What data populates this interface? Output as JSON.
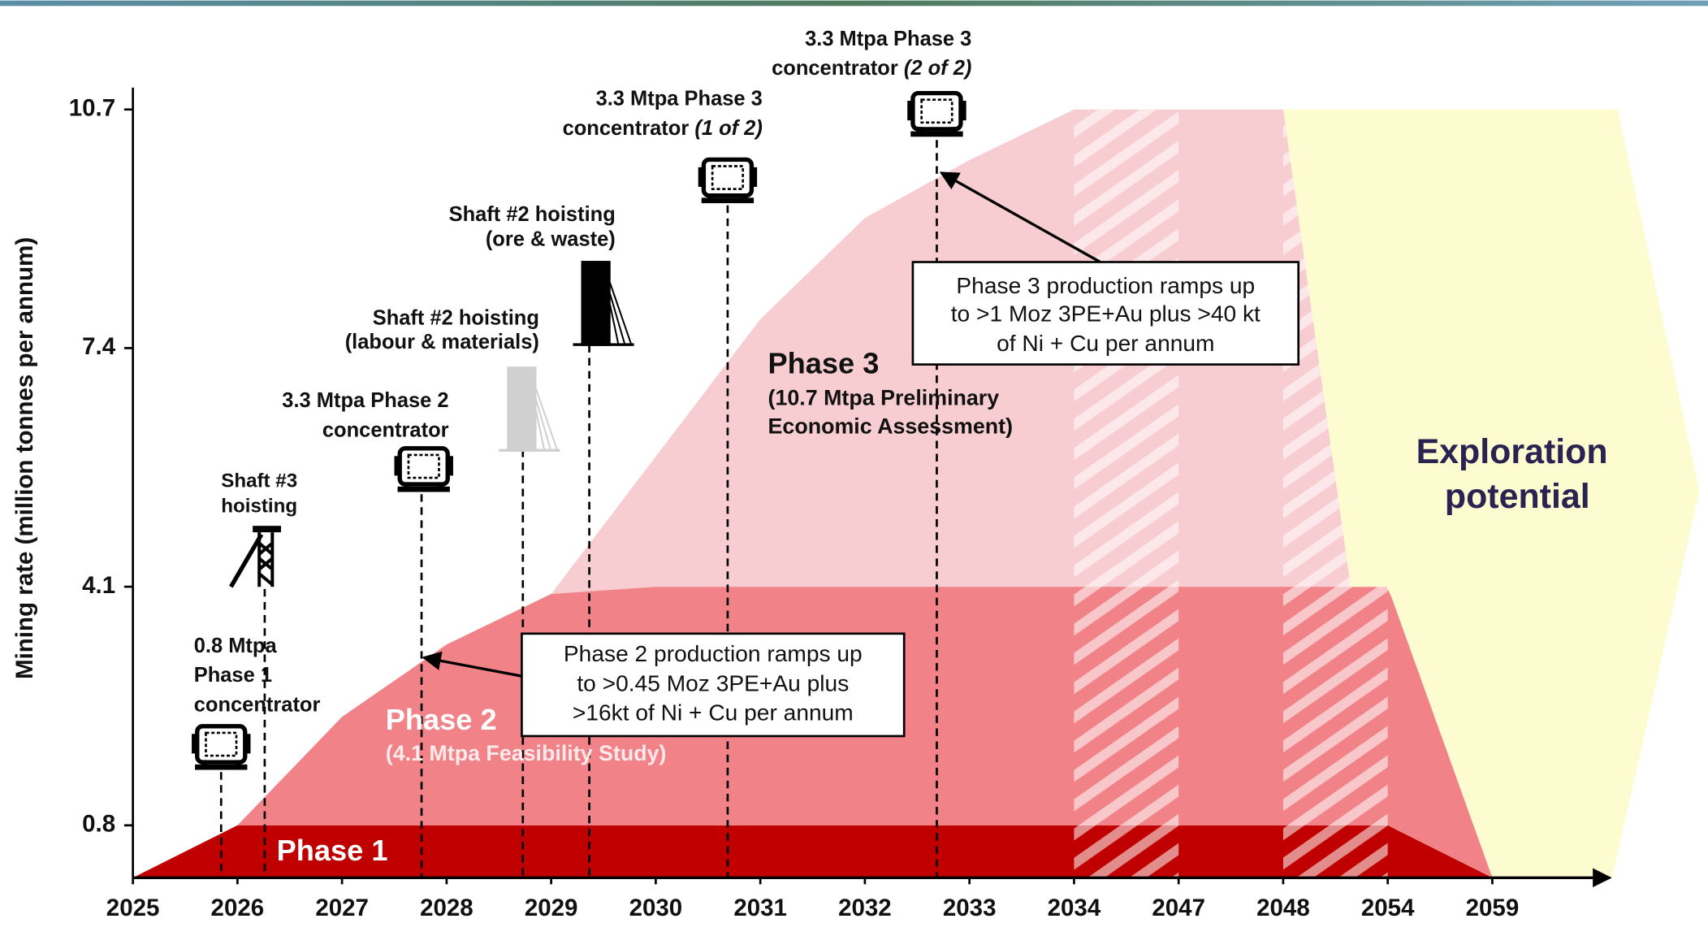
{
  "chart_data": {
    "type": "area",
    "ylabel": "Mining rate (million tonnes per annum)",
    "categories": [
      "2025",
      "2026",
      "2027",
      "2028",
      "2029",
      "2030",
      "2031",
      "2032",
      "2033",
      "2034",
      "2047",
      "2048",
      "2054",
      "2059"
    ],
    "ylim": [
      0,
      10.7
    ],
    "yticks": [
      0.8,
      4.1,
      7.4,
      10.7
    ],
    "series": [
      {
        "name": "Phase 1",
        "color": "#c00000",
        "values": [
          0,
          0.8,
          0.8,
          0.8,
          0.8,
          0.8,
          0.8,
          0.8,
          0.8,
          0.8,
          0.8,
          0.8,
          0.8,
          0
        ]
      },
      {
        "name": "Phase 2",
        "subtitle": [
          "(4.1 Mtpa Feasibility Study)"
        ],
        "color": "#f08288",
        "values": [
          0,
          0,
          1.5,
          2.5,
          3.2,
          3.3,
          3.3,
          3.3,
          3.3,
          3.3,
          3.3,
          3.3,
          3.3,
          0
        ]
      },
      {
        "name": "Phase 3",
        "subtitle": [
          "(10.7 Mtpa Preliminary",
          "Economic Assessment)"
        ],
        "color": "#f8cdd1",
        "values": [
          0,
          0,
          0,
          0,
          0,
          1.8,
          3.7,
          5.1,
          5.9,
          6.6,
          6.6,
          6.6,
          0,
          0
        ]
      }
    ],
    "milestones": [
      {
        "lines": [
          "0.8 Mtpa",
          "Phase 1",
          "concentrator"
        ]
      },
      {
        "lines": [
          "Shaft #3",
          "hoisting"
        ]
      },
      {
        "lines": [
          "3.3 Mtpa Phase 2",
          "concentrator"
        ]
      },
      {
        "lines": [
          "Shaft #2 hoisting",
          "(labour & materials)"
        ]
      },
      {
        "lines": [
          "Shaft #2 hoisting",
          "(ore & waste)"
        ]
      },
      {
        "lines": [
          "3.3 Mtpa Phase 3",
          "concentrator"
        ],
        "note": "(1 of 2)"
      },
      {
        "lines": [
          "3.3 Mtpa Phase 3",
          "concentrator"
        ],
        "note": "(2 of 2)"
      }
    ],
    "callouts": [
      {
        "lines": [
          "Phase 3 production ramps up",
          "to >1 Moz 3PE+Au plus >40 kt",
          "of Ni + Cu per annum"
        ]
      },
      {
        "lines": [
          "Phase 2 production ramps up",
          "to >0.45 Moz 3PE+Au plus",
          ">16kt of Ni + Cu per annum"
        ]
      }
    ],
    "exploration": {
      "lines": [
        "Exploration",
        "potential"
      ],
      "color": "#fdfbd0"
    }
  }
}
